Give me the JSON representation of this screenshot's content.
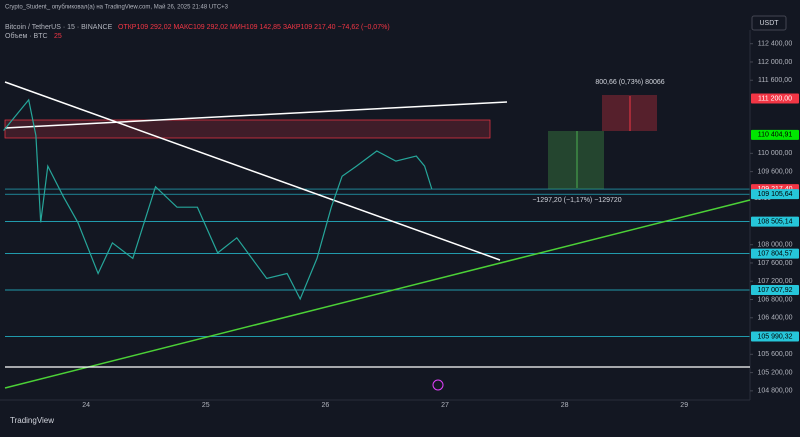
{
  "header": {
    "publisher": "Crypto_Student_ опубликовал(а) на TradingView.com, Май 26, 2025 21:48 UTC+3",
    "symbol": "Bitcoin / TetherUS · 15 · BINANCE",
    "ohlc": "ОТКР109 292,02  МАКС109 292,02  МИН109 142,85  ЗАКР109 217,40  −74,62 (−0,07%)",
    "volume": "Объем · BTC",
    "volume_value": "25",
    "currency": "USDT"
  },
  "chart_data": {
    "type": "line",
    "ylim": [
      104600,
      112700
    ],
    "xlim": [
      23.28,
      29.55
    ],
    "yticks": [
      {
        "value": 112400,
        "label": "112 400,00",
        "kind": "plain"
      },
      {
        "value": 112000,
        "label": "112 000,00",
        "kind": "plain"
      },
      {
        "value": 111600,
        "label": "111 600,00",
        "kind": "plain"
      },
      {
        "value": 111200,
        "label": "111 200,00",
        "kind": "red"
      },
      {
        "value": 110404.91,
        "label": "110 404,91",
        "kind": "green"
      },
      {
        "value": 110000,
        "label": "110 000,00",
        "kind": "plain"
      },
      {
        "value": 109600,
        "label": "109 600,00",
        "kind": "plain"
      },
      {
        "value": 109217.4,
        "label": "109 217,40",
        "kind": "red"
      },
      {
        "value": 109105.64,
        "label": "109 105,64",
        "kind": "cyan"
      },
      {
        "value": 108505.14,
        "label": "108 505,14",
        "kind": "cyan"
      },
      {
        "value": 108000,
        "label": "108 000,00",
        "kind": "plain"
      },
      {
        "value": 107804.57,
        "label": "107 804,57",
        "kind": "cyan"
      },
      {
        "value": 107600,
        "label": "107 600,00",
        "kind": "plain"
      },
      {
        "value": 107200,
        "label": "107 200,00",
        "kind": "plain"
      },
      {
        "value": 107007.92,
        "label": "107 007,92",
        "kind": "cyan"
      },
      {
        "value": 106800,
        "label": "106 800,00",
        "kind": "plain"
      },
      {
        "value": 106400,
        "label": "106 400,00",
        "kind": "plain"
      },
      {
        "value": 105990.32,
        "label": "105 990,32",
        "kind": "cyan"
      },
      {
        "value": 105600,
        "label": "105 600,00",
        "kind": "plain"
      },
      {
        "value": 105200,
        "label": "105 200,00",
        "kind": "plain"
      },
      {
        "value": 104800,
        "label": "104 800,00",
        "kind": "plain"
      }
    ],
    "price_time": "11:10",
    "xticks": [
      24,
      25,
      26,
      27,
      28,
      29
    ],
    "series": [
      {
        "name": "BTCUSDT",
        "color": "#26a69a",
        "x": [
          23.31,
          23.52,
          23.58,
          23.62,
          23.68,
          23.81,
          23.93,
          24.1,
          24.22,
          24.39,
          24.58,
          24.76,
          24.93,
          25.1,
          25.26,
          25.51,
          25.68,
          25.79,
          25.93,
          26.05,
          26.14,
          26.26,
          26.43,
          26.59,
          26.76,
          26.83,
          26.89
        ],
        "values": [
          110500,
          111170,
          110390,
          108490,
          109720,
          109050,
          108490,
          107370,
          108040,
          107700,
          109270,
          108820,
          108820,
          107820,
          108150,
          107260,
          107370,
          106810,
          107700,
          108820,
          109500,
          109720,
          110050,
          109830,
          109940,
          109720,
          109220
        ]
      }
    ],
    "annotations": [
      "800,66 (0,73%) 80066",
      "−1297,20 (−1,17%) −129720"
    ]
  },
  "footer": {
    "brand": "TradingView"
  }
}
